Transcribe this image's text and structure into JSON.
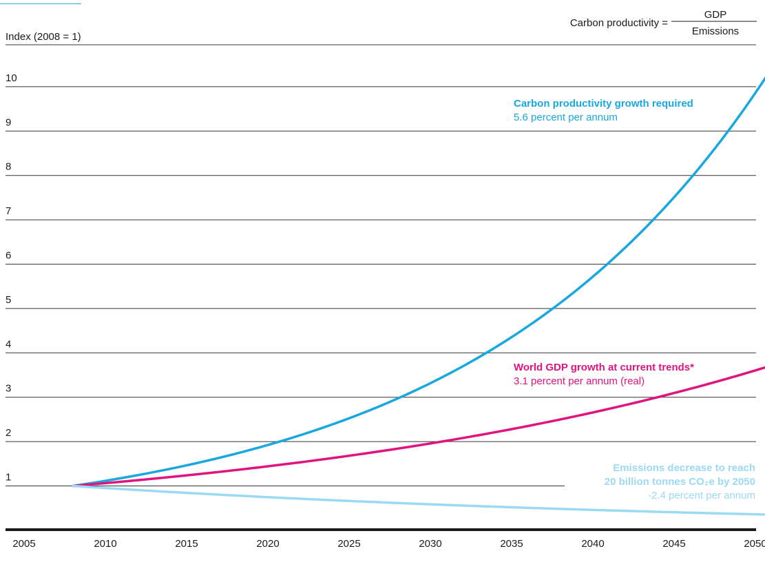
{
  "chart_data": {
    "type": "line",
    "ylabel": "Index (2008 = 1)",
    "xlabel": "",
    "xlim": [
      2005,
      2051
    ],
    "ylim": [
      0,
      11
    ],
    "x_ticks": [
      "2005",
      "2010",
      "2015",
      "2020",
      "2025",
      "2030",
      "2035",
      "2040",
      "2045",
      "2050"
    ],
    "y_ticks": [
      "1",
      "2",
      "3",
      "4",
      "5",
      "6",
      "7",
      "8",
      "9",
      "10"
    ],
    "grid": true,
    "formula": {
      "label": "Carbon productivity =",
      "numerator": "GDP",
      "denominator": "Emissions"
    },
    "series": [
      {
        "name": "Carbon productivity growth required",
        "note": "5.6 percent per annum",
        "color": "#19a7e0",
        "start_year": 2008,
        "end_year": 2051,
        "start_value": 1.0,
        "annual_rate": 0.056
      },
      {
        "name": "World GDP growth at current trends*",
        "note": "3.1 percent per annum (real)",
        "color": "#e0147f",
        "start_year": 2008,
        "end_year": 2051,
        "start_value": 1.0,
        "annual_rate": 0.031
      },
      {
        "name": "Emissions decrease to reach 20 billion tonnes CO₂e by 2050",
        "name_lines": [
          "Emissions decrease to reach",
          "20 billion tonnes CO₂e by 2050"
        ],
        "note": "-2.4 percent per annum",
        "color": "#9bd9f4",
        "start_year": 2008,
        "end_year": 2051,
        "start_value": 1.0,
        "annual_rate": -0.024
      }
    ]
  }
}
